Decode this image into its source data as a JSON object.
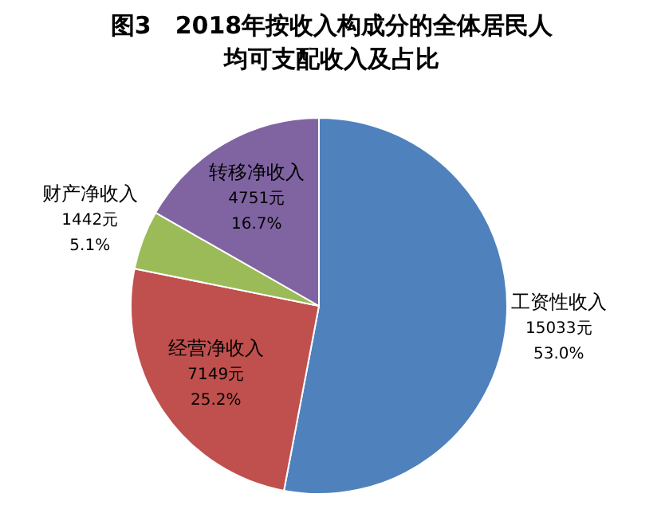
{
  "chart_data": {
    "type": "pie",
    "title": "图3　2018年按收入构成分的全体居民人均可支配收入及占比",
    "categories": [
      "工资性收入",
      "经营净收入",
      "财产净收入",
      "转移净收入"
    ],
    "values": [
      15033,
      7149,
      1442,
      4751
    ],
    "value_labels": [
      "15033元",
      "7149元",
      "1442元",
      "4751元"
    ],
    "annotations": [
      "53.0%",
      "25.2%",
      "5.1%",
      "16.7%"
    ],
    "colors": [
      "#4f81bd",
      "#c0504d",
      "#9bbb59",
      "#8064a2"
    ]
  }
}
